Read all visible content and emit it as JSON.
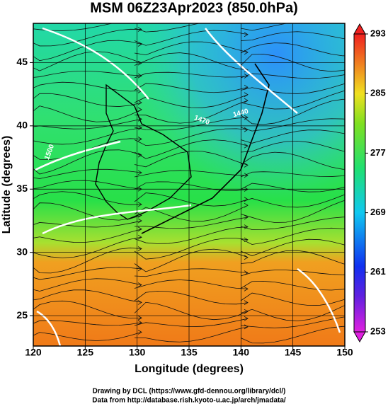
{
  "map": {
    "title": "MSM 06Z23Apr2023 (850.0hPa)",
    "xlabel": "Longitude (degrees)",
    "ylabel": "Latitude  (degrees)",
    "xlim": [
      120,
      150
    ],
    "ylim": [
      22.6,
      48.1
    ],
    "xticks": [
      120,
      125,
      130,
      135,
      140,
      145,
      150
    ],
    "yticks": [
      25,
      30,
      35,
      40,
      45
    ],
    "contour_labels": [
      "1500",
      "1470",
      "1440"
    ],
    "colorbar": {
      "lim": [
        253,
        293
      ],
      "ticks": [
        253,
        261,
        269,
        277,
        285,
        293
      ]
    },
    "credits": [
      "Drawing by DCL (https://www.gfd-dennou.org/library/dcl/)",
      "Data from http://database.rish.kyoto-u.ac.jp/arch/jmadata/"
    ]
  }
}
